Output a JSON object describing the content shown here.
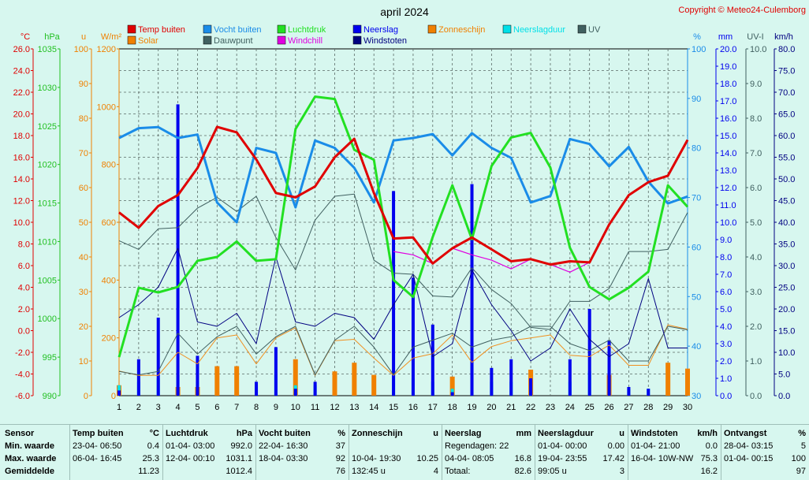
{
  "title": "april 2024",
  "copyright": "Copyright © Meteo24-Culemborg",
  "colors": {
    "temp": "#e00000",
    "vocht": "#1a8ce8",
    "druk": "#22e022",
    "neerslag": "#0000ee",
    "zon": "#f08000",
    "duur": "#00e0e8",
    "uv": "#406060",
    "solar": "#f09020",
    "dauw": "#406060",
    "chill": "#e000e0",
    "stoten": "#000080"
  },
  "axes": {
    "temp": {
      "unit": "°C",
      "labels": [
        "26.0",
        "24.0",
        "22.0",
        "20.0",
        "18.0",
        "16.0",
        "14.0",
        "12.0",
        "10.0",
        "8.0",
        "6.0",
        "4.0",
        "2.0",
        "0.0",
        "-2.0",
        "-4.0",
        "-6.0"
      ]
    },
    "hpa": {
      "unit": "hPa",
      "labels": [
        "1035",
        "1030",
        "1025",
        "1020",
        "1015",
        "1010",
        "1005",
        "1000",
        "995",
        "990"
      ]
    },
    "u": {
      "unit": "u",
      "labels": [
        "100",
        "90",
        "80",
        "70",
        "60",
        "50",
        "40",
        "30",
        "20",
        "10",
        "0"
      ]
    },
    "solar": {
      "unit": "W/m²",
      "labels": [
        "1200",
        "1000",
        "800",
        "600",
        "400",
        "200",
        "0"
      ]
    },
    "pct": {
      "unit": "%",
      "labels": [
        "100",
        "90",
        "80",
        "70",
        "60",
        "50",
        "40",
        "30"
      ]
    },
    "mm": {
      "unit": "mm",
      "labels": [
        "20.0",
        "19.0",
        "18.0",
        "17.0",
        "16.0",
        "15.0",
        "14.0",
        "13.0",
        "12.0",
        "11.0",
        "10.0",
        "9.0",
        "8.0",
        "7.0",
        "6.0",
        "5.0",
        "4.0",
        "3.0",
        "2.0",
        "1.0",
        "0.0"
      ]
    },
    "uvi": {
      "unit": "UV-I",
      "labels": [
        "10.0",
        "9.0",
        "8.0",
        "7.0",
        "6.0",
        "5.0",
        "4.0",
        "3.0",
        "2.0",
        "1.0",
        "0.0"
      ]
    },
    "kmh": {
      "unit": "km/h",
      "labels": [
        "80.0",
        "75.0",
        "70.0",
        "65.0",
        "60.0",
        "55.0",
        "50.0",
        "45.0",
        "40.0",
        "35.0",
        "30.0",
        "25.0",
        "20.0",
        "15.0",
        "10.0",
        "5.0",
        "0.0"
      ]
    }
  },
  "legend": [
    {
      "label": "Temp buiten",
      "color": "#e00000"
    },
    {
      "label": "Vocht buiten",
      "color": "#1a8ce8"
    },
    {
      "label": "Luchtdruk",
      "color": "#22e022"
    },
    {
      "label": "Neerslag",
      "color": "#0000ee"
    },
    {
      "label": "Zonneschijn",
      "color": "#f08000"
    },
    {
      "label": "Neerslagduur",
      "color": "#00e0e8"
    },
    {
      "label": "UV",
      "color": "#406060"
    },
    {
      "label": "Solar",
      "color": "#f08000"
    },
    {
      "label": "Dauwpunt",
      "color": "#406060"
    },
    {
      "label": "Windchill",
      "color": "#e000e0"
    },
    {
      "label": "Windstoten",
      "color": "#000080"
    }
  ],
  "chart_data": {
    "type": "line",
    "title": "april 2024",
    "x": [
      1,
      2,
      3,
      4,
      5,
      6,
      7,
      8,
      9,
      10,
      11,
      12,
      13,
      14,
      15,
      16,
      17,
      18,
      19,
      20,
      21,
      22,
      23,
      24,
      25,
      26,
      27,
      28,
      29,
      30
    ],
    "xlim": [
      1,
      30
    ],
    "series": [
      {
        "name": "Temp buiten",
        "axis": "temp",
        "ylim": [
          -6,
          26
        ],
        "values": [
          10.9,
          9.5,
          11.5,
          12.5,
          15.0,
          18.8,
          18.3,
          15.8,
          12.7,
          12.3,
          13.3,
          16.0,
          17.7,
          12.7,
          8.5,
          8.6,
          6.2,
          7.6,
          8.6,
          7.5,
          6.4,
          6.6,
          6.1,
          6.4,
          6.3,
          9.8,
          12.5,
          13.7,
          14.3,
          17.6
        ]
      },
      {
        "name": "Vocht buiten",
        "axis": "pct",
        "ylim": [
          30,
          100
        ],
        "values": [
          82,
          84,
          84.2,
          82,
          82.7,
          69,
          65,
          80,
          79,
          68,
          81.5,
          80,
          76,
          69,
          81.5,
          82,
          82.8,
          78.5,
          83,
          80,
          78,
          69,
          70.3,
          81.8,
          80.8,
          76.3,
          80.2,
          73.2,
          68.8,
          70.2
        ]
      },
      {
        "name": "Luchtdruk",
        "axis": "hpa",
        "ylim": [
          990,
          1035
        ],
        "values": [
          995,
          1004,
          1003.4,
          1004.1,
          1007.5,
          1008,
          1010,
          1007.5,
          1007.7,
          1024.6,
          1028.8,
          1028.5,
          1021.9,
          1020.6,
          1005,
          1002.8,
          1010.6,
          1017.3,
          1010.3,
          1019.8,
          1023.5,
          1024.1,
          1019.6,
          1009.2,
          1004.1,
          1002.5,
          1004,
          1006.1,
          1017.3,
          1014.5
        ]
      },
      {
        "name": "Dauwpunt",
        "axis": "temp",
        "ylim": [
          -6,
          26
        ],
        "values": [
          8.3,
          7.5,
          9.4,
          9.5,
          11.3,
          12.3,
          11.0,
          12.4,
          8.6,
          5.6,
          10.2,
          12.4,
          12.6,
          6.5,
          5.3,
          5.2,
          3.2,
          3.1,
          5.8,
          3.8,
          2.5,
          0.3,
          0.1,
          2.7,
          2.7,
          3.9,
          7.3,
          7.3,
          7.5,
          10.9
        ]
      },
      {
        "name": "Windchill",
        "axis": "temp",
        "ylim": [
          -6,
          26
        ],
        "values": [
          null,
          null,
          null,
          null,
          null,
          null,
          null,
          null,
          null,
          null,
          null,
          null,
          null,
          null,
          7.3,
          7.0,
          6.2,
          7.6,
          7.0,
          6.5,
          5.7,
          6.6,
          6.1,
          5.4,
          6.3,
          null,
          null,
          null,
          null,
          null
        ]
      },
      {
        "name": "Windstoten",
        "axis": "kmh",
        "ylim": [
          0,
          80
        ],
        "values": [
          18,
          21,
          25,
          34,
          17,
          16,
          19,
          12,
          32,
          17,
          16,
          19,
          18,
          13,
          21,
          28,
          9,
          12,
          29,
          21,
          15,
          8,
          11,
          20,
          13,
          9,
          12,
          27,
          11,
          11
        ]
      },
      {
        "name": "Zonneschijn",
        "axis": "u",
        "ylim": [
          0,
          100
        ],
        "values": [
          12,
          10,
          8.5,
          16,
          12,
          23,
          29,
          15,
          22,
          32,
          6,
          24,
          26,
          24,
          12,
          16,
          17,
          22,
          18,
          22,
          22.5,
          26,
          32,
          24,
          17,
          24,
          13.6,
          13.7,
          31,
          27
        ]
      },
      {
        "name": "Solar",
        "axis": "solar",
        "ylim": [
          0,
          1200
        ],
        "values": [
          85,
          70,
          70,
          150,
          110,
          200,
          210,
          110,
          200,
          235,
          70,
          190,
          195,
          130,
          70,
          130,
          145,
          210,
          115,
          170,
          190,
          200,
          210,
          140,
          135,
          175,
          105,
          105,
          245,
          230
        ]
      },
      {
        "name": "UV",
        "axis": "uvi",
        "ylim": [
          0,
          10
        ],
        "values": [
          0.7,
          0.6,
          0.7,
          1.8,
          1.2,
          1.7,
          2.0,
          1.2,
          1.7,
          2.0,
          0.6,
          1.6,
          2.0,
          1.4,
          0.6,
          1.4,
          1.6,
          1.8,
          1.4,
          1.6,
          1.7,
          2.0,
          2.0,
          1.5,
          1.3,
          1.6,
          1.0,
          1.0,
          2.0,
          1.9
        ]
      },
      {
        "name": "Neerslag",
        "axis": "mm",
        "type": "bar",
        "ylim": [
          0,
          20
        ],
        "values": [
          0.3,
          2.1,
          4.5,
          16.8,
          2.3,
          0,
          0,
          0.8,
          2.8,
          0.4,
          0.8,
          0,
          0,
          0,
          11.8,
          6.8,
          4.1,
          0.2,
          12.2,
          1.6,
          2.1,
          1.0,
          0,
          2.1,
          5.0,
          3.2,
          0.5,
          0.4,
          0,
          0
        ]
      },
      {
        "name": "Neerslagduur",
        "axis": "u",
        "type": "bar",
        "ylim": [
          0,
          100
        ],
        "values": [
          3,
          4,
          5,
          6,
          4,
          0,
          0,
          3,
          6,
          3,
          3,
          0,
          0,
          0,
          7,
          5,
          4,
          2,
          17.4,
          4,
          4,
          3,
          0,
          4,
          7,
          5,
          2,
          2,
          0,
          0
        ]
      }
    ],
    "daily_bars_zonneschijn": [
      3,
      0,
      0,
      2.5,
      2.5,
      8.5,
      8.5,
      0,
      0,
      10.5,
      0,
      7,
      9.5,
      6,
      0,
      0,
      0,
      5.5,
      0,
      0,
      0,
      7.5,
      0,
      0,
      0,
      6,
      0,
      0,
      9.5,
      7.8
    ],
    "grid": true
  },
  "summary": {
    "sensor": {
      "title": "Sensor",
      "rows": [
        "Min. waarde",
        "Max. waarde",
        "Gemiddelde"
      ]
    },
    "temp": {
      "title": "Temp buiten",
      "unit": "°C",
      "rows": [
        [
          "23-04-  06:50",
          "0.4"
        ],
        [
          "06-04-  16:45",
          "25.3"
        ],
        [
          "",
          "11.23"
        ]
      ]
    },
    "druk": {
      "title": "Luchtdruk",
      "unit": "hPa",
      "rows": [
        [
          "01-04-  03:00",
          "992.0"
        ],
        [
          "12-04-  00:10",
          "1031.1"
        ],
        [
          "",
          "1012.4"
        ]
      ]
    },
    "vocht": {
      "title": "Vocht buiten",
      "unit": "%",
      "rows": [
        [
          "22-04-  16:30",
          "37"
        ],
        [
          "18-04-  03:30",
          "92"
        ],
        [
          "",
          "76"
        ]
      ]
    },
    "zon": {
      "title": "Zonneschijn",
      "unit": "u",
      "rows": [
        [
          "",
          ""
        ],
        [
          "10-04-  19:30",
          "10.25"
        ],
        [
          "132:45 u",
          "4"
        ]
      ]
    },
    "neerslag": {
      "title": "Neerslag",
      "unit": "mm",
      "rows": [
        [
          "Regendagen: 22",
          ""
        ],
        [
          "04-04-  08:05",
          "16.8"
        ],
        [
          "Totaal:",
          "82.6"
        ]
      ]
    },
    "duur": {
      "title": "Neerslagduur",
      "unit": "u",
      "rows": [
        [
          "01-04-  00:00",
          "0.00"
        ],
        [
          "19-04-  23:55",
          "17.42"
        ],
        [
          "99:05 u",
          "3"
        ]
      ]
    },
    "stoten": {
      "title": "Windstoten",
      "unit": "km/h",
      "rows": [
        [
          "01-04-  21:00",
          "0.0"
        ],
        [
          "16-04-  10W-NW",
          "75.3"
        ],
        [
          "",
          "16.2"
        ]
      ]
    },
    "ontvangst": {
      "title": "Ontvangst",
      "unit": "%",
      "rows": [
        [
          "28-04-  03:15",
          "5"
        ],
        [
          "01-04-  00:15",
          "100"
        ],
        [
          "",
          "97"
        ]
      ]
    }
  }
}
